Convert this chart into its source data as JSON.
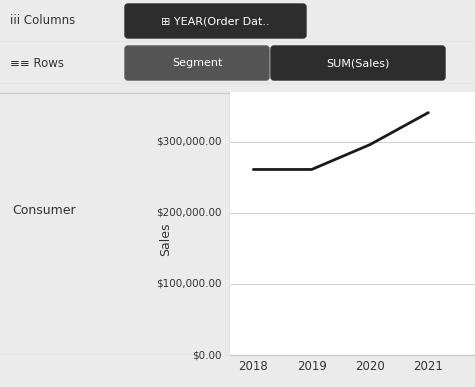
{
  "columns_label": "iii Columns",
  "columns_pill": "⊞ YEAR(Order Dat..",
  "rows_label": "≡≡ Rows",
  "rows_pill1": "Segment",
  "rows_pill2": "SUM(Sales)",
  "row_label": "Consumer",
  "ylabel": "Sales",
  "years": [
    2018,
    2019,
    2020,
    2021
  ],
  "values": [
    261000,
    261000,
    296000,
    341000
  ],
  "yticks": [
    0,
    100000,
    200000,
    300000
  ],
  "ytick_labels": [
    "$0.00",
    "$100,000.00",
    "$200,000.00",
    "$300,000.00"
  ],
  "ylim": [
    0,
    370000
  ],
  "bg_color": "#ebebeb",
  "plot_bg": "#ffffff",
  "toolbar_bg": "#e0e0e0",
  "pill_dark_bg": "#2d2d2d",
  "pill_light_bg": "#555555",
  "pill_text_color": "#ffffff",
  "toolbar_text_color": "#333333",
  "line_color": "#1a1a1a",
  "line_width": 2.0,
  "grid_color": "#d0d0d0",
  "axis_line_color": "#999999",
  "border_color": "#cccccc"
}
